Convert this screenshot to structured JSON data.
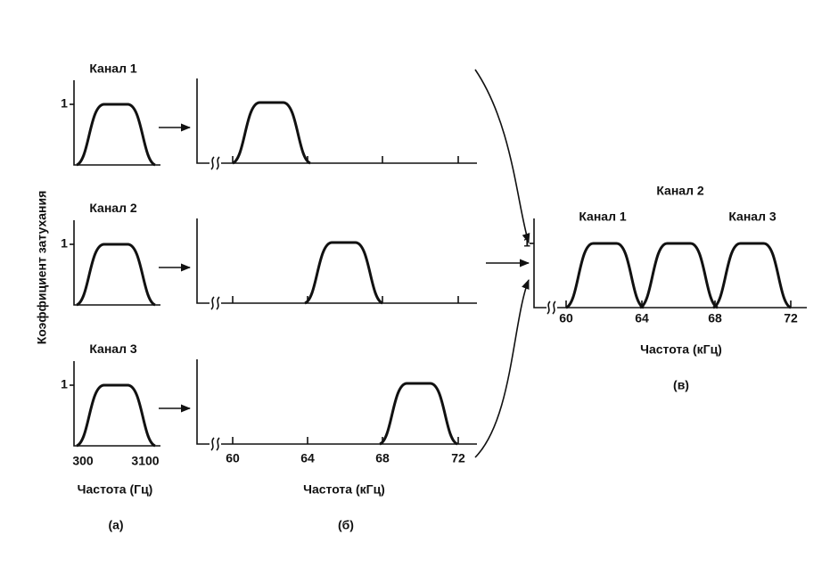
{
  "y_axis_label": "Коэффициент затухания",
  "panel_a": {
    "channels": [
      {
        "label": "Канал 1",
        "y_tick": "1"
      },
      {
        "label": "Канал 2",
        "y_tick": "1"
      },
      {
        "label": "Канал 3",
        "y_tick": "1"
      }
    ],
    "x_ticks": [
      "300",
      "3100"
    ],
    "x_label": "Частота (Гц)",
    "caption": "(а)"
  },
  "panel_b": {
    "x_ticks": [
      "60",
      "64",
      "68",
      "72"
    ],
    "x_label": "Частота (кГц)",
    "caption": "(б)"
  },
  "panel_c": {
    "channel_labels": [
      "Канал 1",
      "Канал 2",
      "Канал 3"
    ],
    "y_tick": "1",
    "x_ticks": [
      "60",
      "64",
      "68",
      "72"
    ],
    "x_label": "Частота (кГц)",
    "caption": "(в)"
  }
}
